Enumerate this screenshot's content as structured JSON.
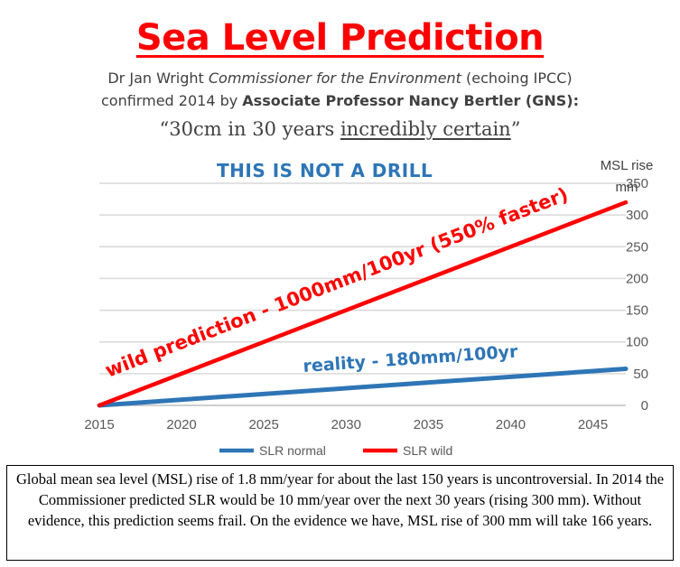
{
  "title": "Sea Level Prediction",
  "credit": {
    "line1_name": "Dr Jan Wright ",
    "line1_role": "Commissioner for the Environment",
    "line1_tail": " (echoing IPCC)",
    "line2_lead": "confirmed 2014 by ",
    "line2_bold": "Associate Professor Nancy Bertler (GNS):"
  },
  "quote": {
    "open": "“30cm in 30 years ",
    "underlined": "incredibly certain",
    "close": "”"
  },
  "banner": "THIS IS NOT A DRILL",
  "caption": "Global mean sea level (MSL) rise of 1.8 mm/year for about the last 150 years is uncontroversial. In 2014 the Commissioner predicted SLR would be 10 mm/year over the next 30 years (rising 300 mm). Without evidence, this prediction seems frail. On the evidence we have, MSL rise of 300 mm will take 166 years.",
  "chart_data": {
    "type": "line",
    "ylabel": "MSL rise mm",
    "ylabel_lines": [
      "MSL rise",
      "mm"
    ],
    "xlim": [
      2015,
      2047
    ],
    "ylim": [
      0,
      350
    ],
    "x_ticks": [
      2015,
      2020,
      2025,
      2030,
      2035,
      2040,
      2045
    ],
    "y_ticks": [
      0,
      50,
      100,
      150,
      200,
      250,
      300,
      350
    ],
    "grid": true,
    "legend_position": "bottom",
    "series": [
      {
        "name": "SLR normal",
        "color": "#2e75b6",
        "x": [
          2015,
          2047
        ],
        "y": [
          0,
          57.6
        ]
      },
      {
        "name": "SLR wild",
        "color": "#ff0000",
        "x": [
          2015,
          2047
        ],
        "y": [
          0,
          320
        ]
      }
    ],
    "annotations": [
      {
        "text": "wild prediction - 1000mm/100yr (550% faster)",
        "color": "#ff0000"
      },
      {
        "text": "reality - 180mm/100yr",
        "color": "#2e75b6"
      }
    ]
  }
}
